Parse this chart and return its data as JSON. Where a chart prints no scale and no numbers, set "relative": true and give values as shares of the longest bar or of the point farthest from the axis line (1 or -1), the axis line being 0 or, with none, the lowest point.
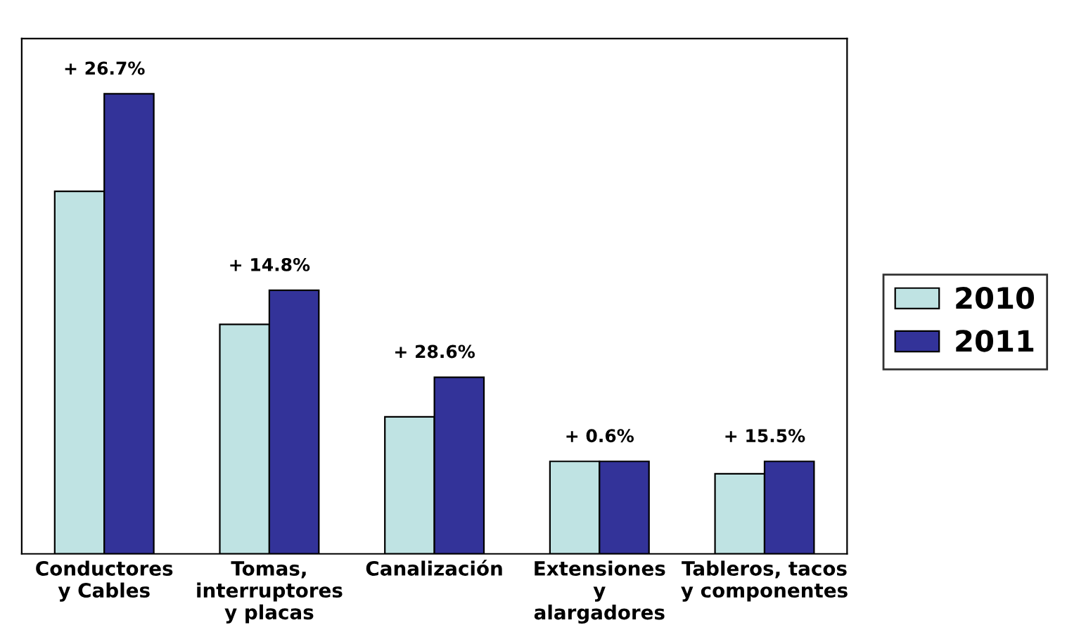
{
  "chart_data": {
    "type": "bar",
    "relative": true,
    "categories": [
      "Conductores\ny Cables",
      "Tomas,\ninterruptores\ny placas",
      "Canalización",
      "Extensiones\ny\nalargadores",
      "Tableros, tacos\ny componentes"
    ],
    "series": [
      {
        "name": "2010",
        "color": "#bfe3e3",
        "values": [
          0.788,
          0.499,
          0.298,
          0.201,
          0.174
        ]
      },
      {
        "name": "2011",
        "color": "#333399",
        "values": [
          1.0,
          0.573,
          0.384,
          0.201,
          0.201
        ]
      }
    ],
    "annotations": [
      {
        "text": "+ 26.7%",
        "x": "Conductores\ny Cables",
        "y": 1.0
      },
      {
        "text": "+ 14.8%",
        "x": "Tomas,\ninterruptores\ny placas",
        "y": 0.573
      },
      {
        "text": "+ 28.6%",
        "x": "Canalización",
        "y": 0.384
      },
      {
        "text": "+ 0.6%",
        "x": "Extensiones\ny\nalargadores",
        "y": 0.201
      },
      {
        "text": "+ 15.5%",
        "x": "Tableros, tacos\ny componentes",
        "y": 0.201
      }
    ],
    "legend": "right"
  }
}
